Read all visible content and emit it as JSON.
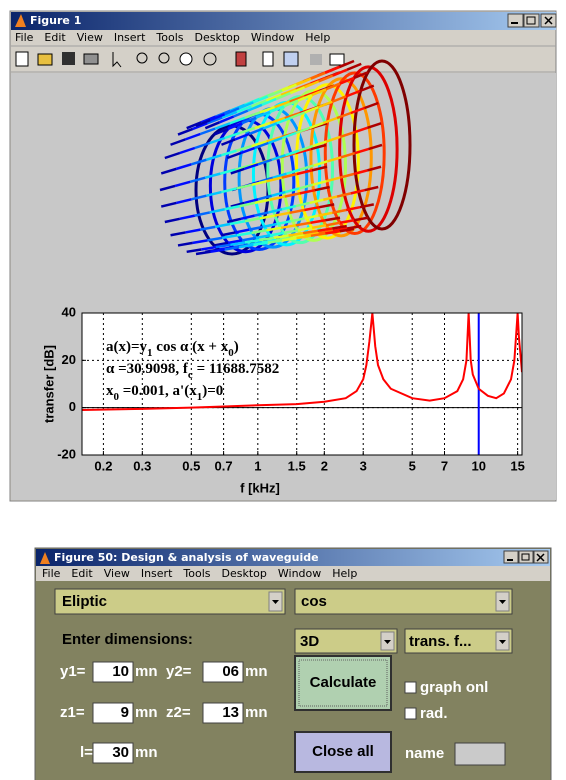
{
  "figure1": {
    "title": "Figure 1",
    "menu": [
      "File",
      "Edit",
      "View",
      "Insert",
      "Tools",
      "Desktop",
      "Window",
      "Help"
    ],
    "chart_data": {
      "type": "line",
      "xlabel": "f [kHz]",
      "ylabel": "transfer [dB]",
      "xscale": "log",
      "xlim": [
        0.16,
        15.7
      ],
      "ylim": [
        -20,
        40
      ],
      "xticks": [
        0.2,
        0.3,
        0.5,
        0.7,
        1,
        1.5,
        2,
        3,
        5,
        7,
        10,
        15
      ],
      "yticks": [
        -20,
        0,
        20,
        40
      ],
      "grid": true,
      "annotations": [
        [
          "a(x)=y",
          "1",
          " cos  α  (x + x",
          "0",
          ")"
        ],
        [
          "α =30.9098,   f",
          "c",
          " = 11688.7582"
        ],
        [
          "x",
          "0",
          " =0.001,  a'(x",
          "1",
          ")=0"
        ]
      ],
      "vlines": [
        10
      ],
      "vline_color": "#0000ff",
      "series": [
        {
          "color": "#ff0000",
          "x": [
            0.16,
            0.3,
            0.5,
            0.7,
            1,
            1.5,
            2,
            2.5,
            2.8,
            3.0,
            3.1,
            3.2,
            3.3,
            3.4,
            3.5,
            3.7,
            4,
            5,
            6,
            7,
            8,
            8.5,
            8.8,
            9.0,
            9.1,
            9.2,
            9.4,
            10,
            11,
            12,
            13,
            14,
            14.5,
            14.8,
            15,
            15.2,
            15.7
          ],
          "values": [
            -1,
            -0.5,
            0,
            0.5,
            1,
            1.5,
            2.5,
            4,
            7,
            12,
            18,
            28,
            40,
            26,
            18,
            12,
            8,
            4,
            3,
            4,
            7,
            12,
            20,
            40,
            30,
            20,
            14,
            8,
            5,
            4,
            6,
            12,
            20,
            32,
            40,
            30,
            15
          ]
        }
      ]
    }
  },
  "figure50": {
    "title": "Figure 50: Design & analysis of waveguide",
    "menu": [
      "File",
      "Edit",
      "View",
      "Insert",
      "Tools",
      "Desktop",
      "Window",
      "Help"
    ],
    "controls": {
      "shape": "Eliptic",
      "profile": "cos",
      "enter_dimensions": "Enter dimensions:",
      "view": "3D",
      "plot_type": "trans. f...",
      "calculate": "Calculate",
      "graph_only": "graph onl",
      "rad": "rad.",
      "close_all": "Close all",
      "name_label": "name",
      "fields": [
        {
          "label": "y1=",
          "value": "10",
          "unit": "mn"
        },
        {
          "label": "y2=",
          "value": "06",
          "unit": "mn"
        },
        {
          "label": "z1=",
          "value": "9",
          "unit": "mn"
        },
        {
          "label": "z2=",
          "value": "13",
          "unit": "mn"
        },
        {
          "label": "l=",
          "value": "30",
          "unit": "mn"
        }
      ]
    }
  }
}
